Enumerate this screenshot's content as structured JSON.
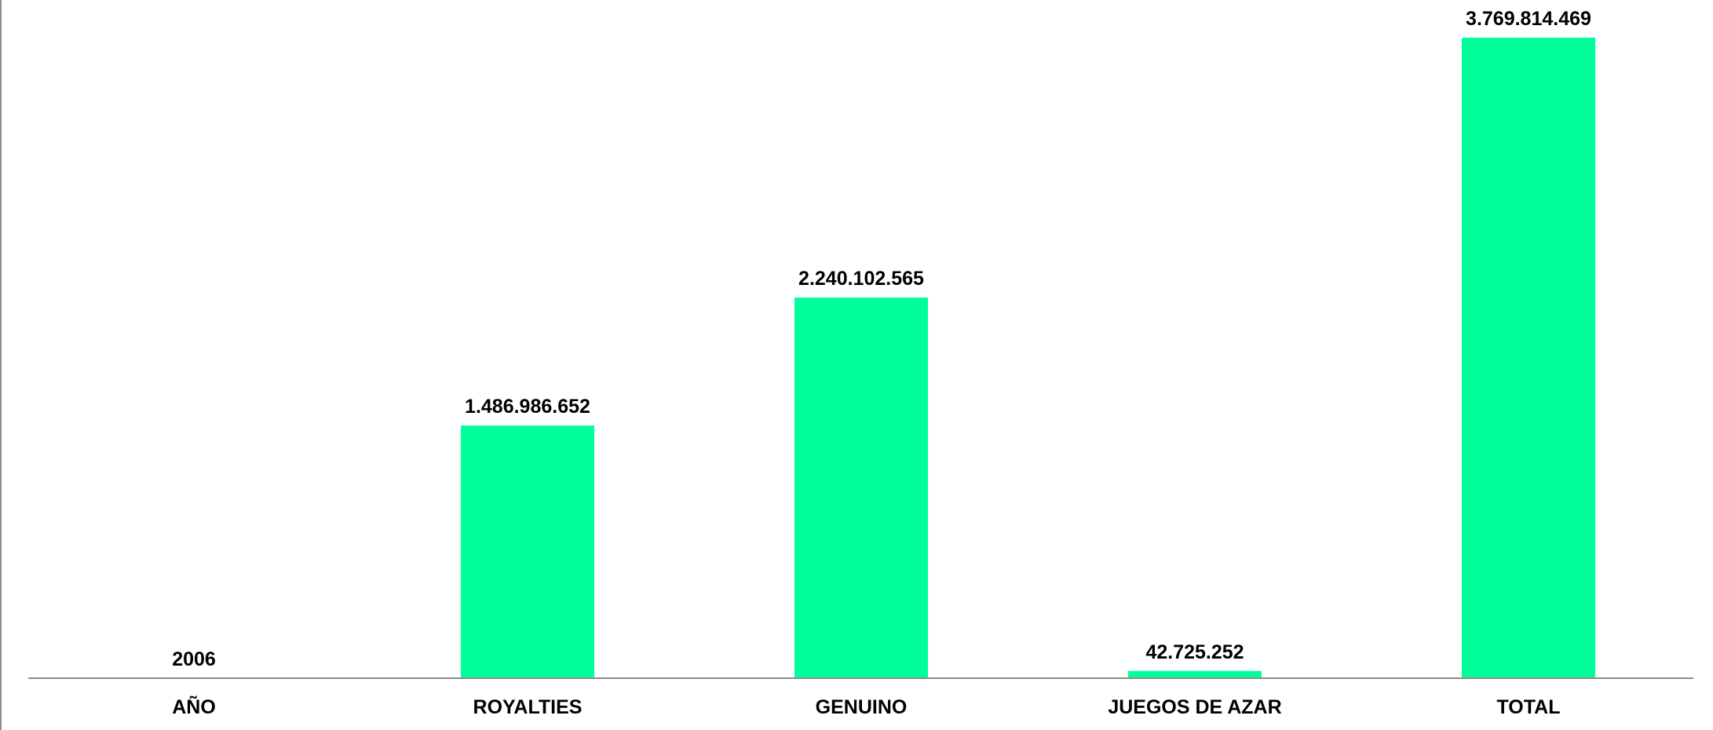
{
  "chart_data": {
    "type": "bar",
    "title": "",
    "xlabel": "",
    "ylabel": "",
    "categories": [
      "AÑO",
      "ROYALTIES",
      "GENUINO",
      "JUEGOS DE AZAR",
      "TOTAL"
    ],
    "values": [
      2006,
      1486986652,
      2240102565,
      42725252,
      3769814469
    ],
    "data_labels": [
      "2006",
      "1.486.986.652",
      "2.240.102.565",
      "42.725.252",
      "3.769.814.469"
    ],
    "ylim": [
      0,
      3769814469
    ],
    "grid": false,
    "legend": "none",
    "bar_color": "#00FF99",
    "axis_color": "#8C8C8C"
  }
}
